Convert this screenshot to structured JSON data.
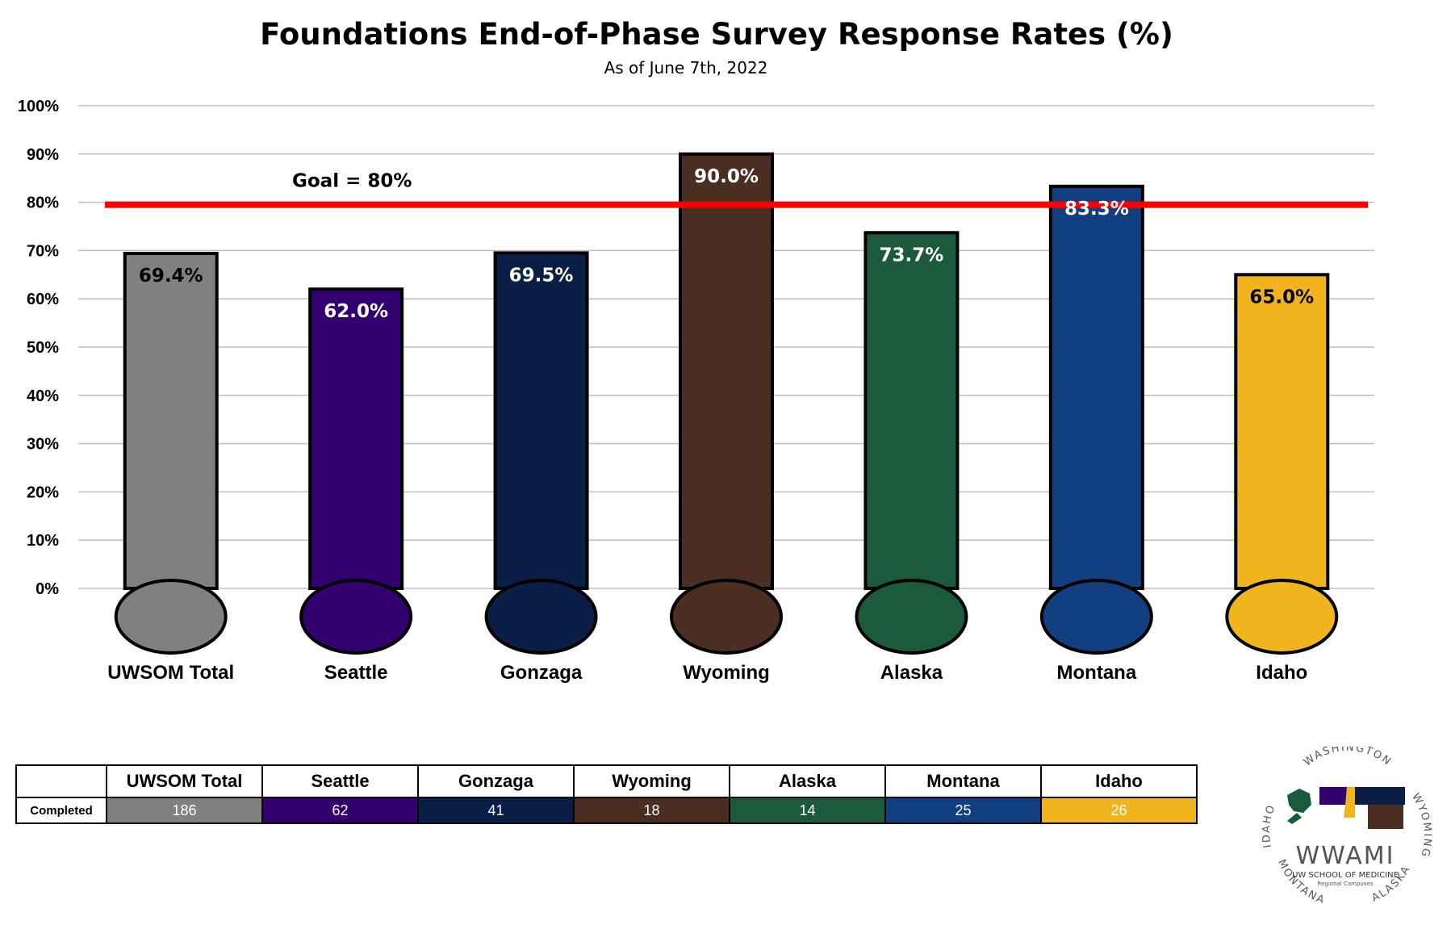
{
  "chart_data": {
    "type": "bar",
    "title": "Foundations End-of-Phase Survey Response Rates (%)",
    "subtitle": "As of June 7th, 2022",
    "categories": [
      "UWSOM Total",
      "Seattle",
      "Gonzaga",
      "Wyoming",
      "Alaska",
      "Montana",
      "Idaho"
    ],
    "values": [
      69.4,
      62.0,
      69.5,
      90.0,
      73.7,
      83.3,
      65.0
    ],
    "data_labels": [
      "69.4%",
      "62.0%",
      "69.5%",
      "90.0%",
      "73.7%",
      "83.3%",
      "65.0%"
    ],
    "colors": [
      "#808080",
      "#33006f",
      "#0b1e45",
      "#4a2e22",
      "#1c5a3c",
      "#123f80",
      "#f0b41c"
    ],
    "label_colors": [
      "#000000",
      "#ffffff",
      "#ffffff",
      "#ffffff",
      "#ffffff",
      "#ffffff",
      "#000000"
    ],
    "ylim": [
      0,
      100
    ],
    "yticks": [
      0,
      10,
      20,
      30,
      40,
      50,
      60,
      70,
      80,
      90,
      100
    ],
    "ytick_labels": [
      "0%",
      "10%",
      "20%",
      "30%",
      "40%",
      "50%",
      "60%",
      "70%",
      "80%",
      "90%",
      "100%"
    ],
    "grid": true,
    "goal": {
      "value": 80,
      "label": "Goal = 80%",
      "color": "#ff0000"
    }
  },
  "table": {
    "headers": [
      "UWSOM Total",
      "Seattle",
      "Gonzaga",
      "Wyoming",
      "Alaska",
      "Montana",
      "Idaho"
    ],
    "row_label": "Completed",
    "values": [
      "186",
      "62",
      "41",
      "18",
      "14",
      "25",
      "26"
    ],
    "colors": [
      "#808080",
      "#33006f",
      "#0b1e45",
      "#4a2e22",
      "#1c5a3c",
      "#123f80",
      "#f0b41c"
    ]
  },
  "logo": {
    "ring_top": "WASHINGTON",
    "ring_right": "WYOMING",
    "ring_left": "IDAHO",
    "ring_bottom_left": "MONTANA",
    "ring_bottom_right": "ALASKA",
    "wordmark": "WWAMI",
    "subtitle": "UW SCHOOL OF MEDICINE",
    "subtitle2": "Regional Campuses"
  }
}
